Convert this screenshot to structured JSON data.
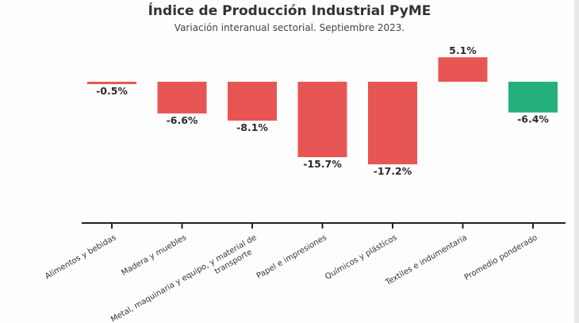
{
  "chart_data": {
    "type": "bar",
    "title": "Índice de Producción Industrial PyME",
    "subtitle": "Variación interanual sectorial. Septiembre 2023.",
    "categories": [
      "Alimentos y bebidas",
      "Madera y muebles",
      "Metal, maquinaria y equipo, y material de transporte",
      "Papel e impresiones",
      "Químicos y plásticos",
      "Textiles e indumentaria",
      "Promedio ponderado"
    ],
    "category_lines": [
      [
        "Alimentos y bebidas"
      ],
      [
        "Madera y muebles"
      ],
      [
        "Metal, maquinaria y equipo, y material de",
        "transporte"
      ],
      [
        "Papel e impresiones"
      ],
      [
        "Químicos y plásticos"
      ],
      [
        "Textiles e indumentaria"
      ],
      [
        "Promedio ponderado"
      ]
    ],
    "values": [
      -0.5,
      -6.6,
      -8.1,
      -15.7,
      -17.2,
      5.1,
      -6.4
    ],
    "value_labels": [
      "-0.5%",
      "-6.6%",
      "-8.1%",
      "-15.7%",
      "-17.2%",
      "5.1%",
      "-6.4%"
    ],
    "ylim": [
      -20,
      6
    ],
    "grid": false,
    "legend": "none",
    "colors": {
      "negative_bar": "#e85555",
      "positive_bar": "#e85555",
      "average_bar": "#23b07d",
      "axis": "#222222"
    }
  }
}
